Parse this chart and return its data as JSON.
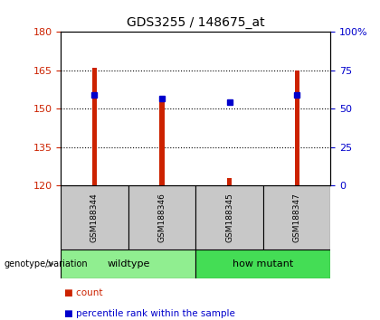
{
  "title": "GDS3255 / 148675_at",
  "samples": [
    "GSM188344",
    "GSM188346",
    "GSM188345",
    "GSM188347"
  ],
  "groups": [
    {
      "name": "wildtype",
      "samples": [
        "GSM188344",
        "GSM188346"
      ],
      "color": "#90EE90"
    },
    {
      "name": "how mutant",
      "samples": [
        "GSM188345",
        "GSM188347"
      ],
      "color": "#44DD55"
    }
  ],
  "count_values": [
    166.0,
    153.0,
    123.0,
    165.0
  ],
  "percentile_values": [
    155.5,
    154.0,
    152.5,
    155.5
  ],
  "ylim_left": [
    120,
    180
  ],
  "yticks_left": [
    120,
    135,
    150,
    165,
    180
  ],
  "yticks_right_labels": [
    "0",
    "25",
    "50",
    "75",
    "100%"
  ],
  "yticks_right_vals": [
    120,
    135,
    150,
    165,
    180
  ],
  "bar_color": "#CC2200",
  "dot_color": "#0000CC",
  "left_tick_color": "#CC2200",
  "right_tick_color": "#0000CC",
  "group_label": "genotype/variation",
  "legend_count": "count",
  "legend_pct": "percentile rank within the sample",
  "sample_box_color": "#C8C8C8",
  "bar_width": 0.07
}
